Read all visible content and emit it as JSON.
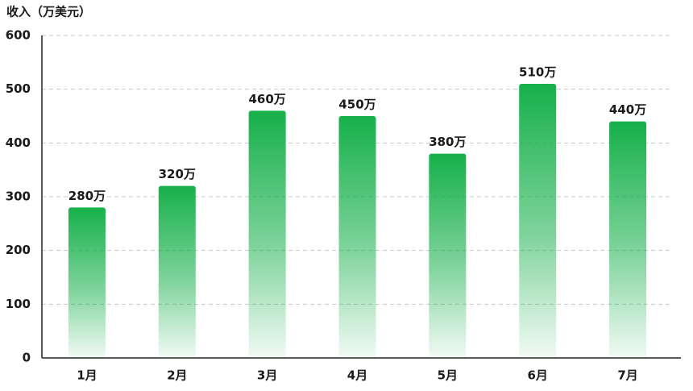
{
  "chart_data": {
    "type": "bar",
    "title": "收入（万美元）",
    "categories": [
      "1月",
      "2月",
      "3月",
      "4月",
      "5月",
      "6月",
      "7月"
    ],
    "values": [
      280,
      320,
      460,
      450,
      380,
      510,
      440
    ],
    "value_labels": [
      "280万",
      "320万",
      "460万",
      "450万",
      "380万",
      "510万",
      "440万"
    ],
    "color": "#16b04a",
    "ylim": [
      0,
      600
    ],
    "yticks": [
      0,
      100,
      200,
      300,
      400,
      500,
      600
    ],
    "grid": true
  }
}
